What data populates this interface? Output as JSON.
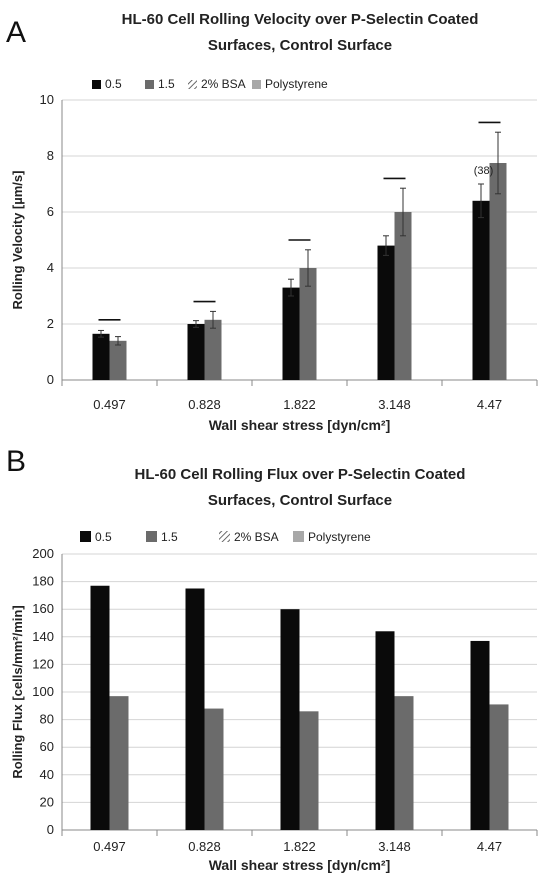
{
  "colors": {
    "series_0_5": "#0a0a0a",
    "series_1_5": "#6b6b6b",
    "series_bsa": "#8a8a8a",
    "series_polystyrene": "#a8a8a8",
    "gridline": "#d4d4d4",
    "axis_text": "#222222"
  },
  "chart_data": [
    {
      "panel_letter": "A",
      "type": "bar",
      "title_line1": "HL-60 Cell Rolling Velocity over P-Selectin Coated",
      "title_line2": "Surfaces, Control Surface",
      "xlabel": "Wall shear stress [dyn/cm²]",
      "ylabel": "Rolling Velocity [µm/s]",
      "ylim": [
        0,
        10
      ],
      "yticks": [
        "0",
        "2",
        "4",
        "6",
        "8",
        "10"
      ],
      "grid": true,
      "legend_position": "top-left",
      "categories": [
        "0.497",
        "0.828",
        "1.822",
        "3.148",
        "4.47"
      ],
      "legend": [
        {
          "name": "0.5",
          "style": "solid-black"
        },
        {
          "name": "1.5",
          "style": "solid-darkgray"
        },
        {
          "name": "2% BSA",
          "style": "hatched"
        },
        {
          "name": "Polystyrene",
          "style": "solid-lightgray"
        }
      ],
      "series": [
        {
          "name": "0.5",
          "values": [
            1.65,
            2.0,
            3.3,
            4.8,
            6.4
          ],
          "errors": [
            0.12,
            0.12,
            0.3,
            0.35,
            0.6
          ]
        },
        {
          "name": "1.5",
          "values": [
            1.4,
            2.15,
            4.0,
            6.0,
            7.75
          ],
          "errors": [
            0.15,
            0.3,
            0.65,
            0.85,
            1.1
          ]
        }
      ],
      "dash_marks": [
        2.15,
        2.8,
        5.0,
        7.2,
        9.2
      ],
      "annotation": {
        "text": "(38)",
        "category_index": 4,
        "y": 7.35
      }
    },
    {
      "panel_letter": "B",
      "type": "bar",
      "title_line1": "HL-60 Cell Rolling Flux over P-Selectin Coated",
      "title_line2": "Surfaces, Control Surface",
      "xlabel": "Wall shear stress [dyn/cm²]",
      "ylabel": "Rolling Flux [cells/mm²/min]",
      "ylim": [
        0,
        200
      ],
      "yticks": [
        "0",
        "20",
        "40",
        "60",
        "80",
        "100",
        "120",
        "140",
        "160",
        "180",
        "200"
      ],
      "grid": true,
      "legend_position": "top-left",
      "categories": [
        "0.497",
        "0.828",
        "1.822",
        "3.148",
        "4.47"
      ],
      "legend": [
        {
          "name": "0.5",
          "style": "solid-black"
        },
        {
          "name": "1.5",
          "style": "solid-darkgray"
        },
        {
          "name": "2% BSA",
          "style": "hatched"
        },
        {
          "name": "Polystyrene",
          "style": "solid-lightgray"
        }
      ],
      "series": [
        {
          "name": "0.5",
          "values": [
            177,
            175,
            160,
            144,
            137
          ]
        },
        {
          "name": "1.5",
          "values": [
            97,
            88,
            86,
            97,
            91
          ]
        }
      ]
    }
  ]
}
